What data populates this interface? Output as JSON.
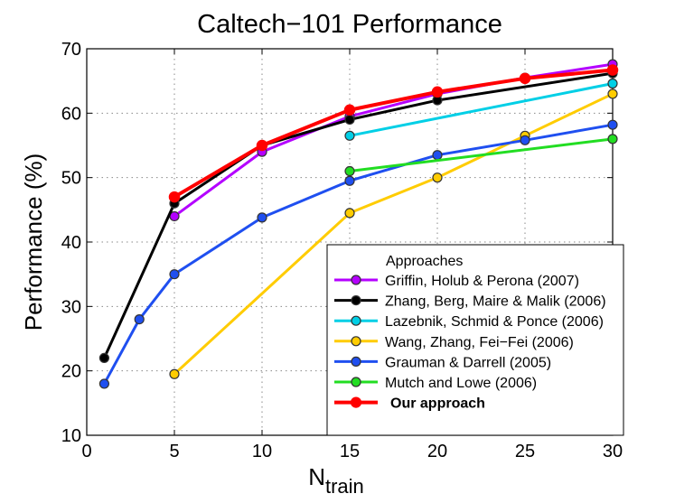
{
  "chart_data": {
    "type": "line",
    "title": "Caltech−101 Performance",
    "xlabel": "N",
    "xlabel_sub": "train",
    "ylabel": "Performance (%)",
    "xlim": [
      0,
      30
    ],
    "ylim": [
      10,
      70
    ],
    "xticks": [
      0,
      5,
      10,
      15,
      20,
      25,
      30
    ],
    "yticks": [
      10,
      20,
      30,
      40,
      50,
      60,
      70
    ],
    "grid": true,
    "legend_title": "Approaches",
    "legend_position": "bottom-right",
    "series": [
      {
        "name": "Griffin, Holub & Perona (2007)",
        "color": "#b400ff",
        "x": [
          5,
          10,
          15,
          20,
          25,
          30
        ],
        "y": [
          44,
          54,
          59.5,
          63,
          65.5,
          67.6
        ]
      },
      {
        "name": "Zhang, Berg, Maire & Malik (2006)",
        "color": "#000000",
        "x": [
          1,
          5,
          10,
          15,
          20,
          30
        ],
        "y": [
          22,
          46,
          55,
          59,
          62,
          66.2
        ]
      },
      {
        "name": "Lazebnik, Schmid & Ponce (2006)",
        "color": "#00cfe6",
        "x": [
          15,
          30
        ],
        "y": [
          56.5,
          64.6
        ]
      },
      {
        "name": "Wang, Zhang, Fei−Fei (2006)",
        "color": "#ffcc00",
        "x": [
          5,
          15,
          20,
          25,
          30
        ],
        "y": [
          19.5,
          44.5,
          50,
          56.5,
          63
        ]
      },
      {
        "name": "Grauman & Darrell (2005)",
        "color": "#1f4ff0",
        "x": [
          1,
          3,
          5,
          10,
          15,
          20,
          25,
          30
        ],
        "y": [
          18,
          28,
          35,
          43.8,
          49.5,
          53.5,
          55.8,
          58.2
        ]
      },
      {
        "name": "Mutch and Lowe (2006)",
        "color": "#22dd22",
        "x": [
          15,
          30
        ],
        "y": [
          51,
          56
        ]
      },
      {
        "name": "Our approach",
        "color": "#ff0000",
        "bold": true,
        "x": [
          5,
          10,
          15,
          20,
          25,
          30
        ],
        "y": [
          47,
          55,
          60.5,
          63.3,
          65.4,
          66.7
        ]
      }
    ]
  }
}
